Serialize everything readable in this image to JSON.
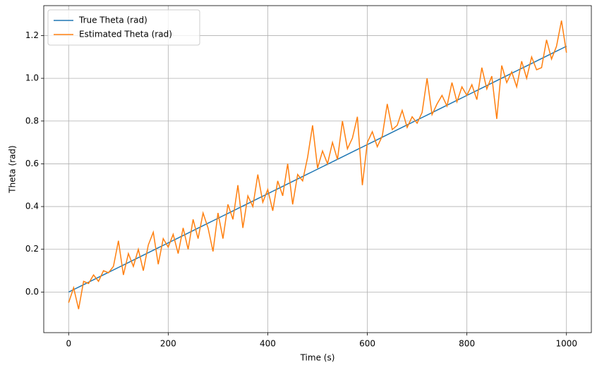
{
  "chart_data": {
    "type": "line",
    "xlabel": "Time (s)",
    "ylabel": "Theta (rad)",
    "x": [
      0,
      10,
      20,
      30,
      40,
      50,
      60,
      70,
      80,
      90,
      100,
      110,
      120,
      130,
      140,
      150,
      160,
      170,
      180,
      190,
      200,
      210,
      220,
      230,
      240,
      250,
      260,
      270,
      280,
      290,
      300,
      310,
      320,
      330,
      340,
      350,
      360,
      370,
      380,
      390,
      400,
      410,
      420,
      430,
      440,
      450,
      460,
      470,
      480,
      490,
      500,
      510,
      520,
      530,
      540,
      550,
      560,
      570,
      580,
      590,
      600,
      610,
      620,
      630,
      640,
      650,
      660,
      670,
      680,
      690,
      700,
      710,
      720,
      730,
      740,
      750,
      760,
      770,
      780,
      790,
      800,
      810,
      820,
      830,
      840,
      850,
      860,
      870,
      880,
      890,
      900,
      910,
      920,
      930,
      940,
      950,
      960,
      970,
      980,
      990,
      1000
    ],
    "series": [
      {
        "name": "True Theta (rad)",
        "color": "#1f77b4",
        "values": [
          0,
          0.0115,
          0.023,
          0.0345,
          0.046,
          0.0575,
          0.069,
          0.0805,
          0.092,
          0.1035,
          0.115,
          0.1265,
          0.138,
          0.1495,
          0.161,
          0.1725,
          0.184,
          0.1955,
          0.207,
          0.2185,
          0.23,
          0.2415,
          0.253,
          0.2645,
          0.276,
          0.2875,
          0.299,
          0.3105,
          0.322,
          0.3335,
          0.345,
          0.3565,
          0.368,
          0.3795,
          0.391,
          0.4025,
          0.414,
          0.4255,
          0.437,
          0.4485,
          0.46,
          0.4715,
          0.483,
          0.4945,
          0.506,
          0.5175,
          0.529,
          0.5405,
          0.552,
          0.5635,
          0.575,
          0.5865,
          0.598,
          0.6095,
          0.621,
          0.6325,
          0.644,
          0.6555,
          0.667,
          0.6785,
          0.69,
          0.7015,
          0.713,
          0.7245,
          0.736,
          0.7475,
          0.759,
          0.7705,
          0.782,
          0.7935,
          0.805,
          0.8165,
          0.828,
          0.8395,
          0.851,
          0.8625,
          0.874,
          0.8855,
          0.897,
          0.9085,
          0.92,
          0.9315,
          0.943,
          0.9545,
          0.966,
          0.9775,
          0.989,
          1.0005,
          1.012,
          1.0235,
          1.035,
          1.0465,
          1.058,
          1.0695,
          1.081,
          1.0925,
          1.104,
          1.1155,
          1.127,
          1.1385,
          1.15
        ]
      },
      {
        "name": "Estimated Theta (rad)",
        "color": "#ff7f0e",
        "values": [
          -0.05,
          0.02,
          -0.08,
          0.05,
          0.04,
          0.08,
          0.05,
          0.1,
          0.09,
          0.12,
          0.24,
          0.08,
          0.18,
          0.12,
          0.2,
          0.1,
          0.22,
          0.28,
          0.13,
          0.25,
          0.21,
          0.27,
          0.18,
          0.3,
          0.2,
          0.34,
          0.25,
          0.37,
          0.3,
          0.19,
          0.37,
          0.25,
          0.41,
          0.34,
          0.5,
          0.3,
          0.45,
          0.4,
          0.55,
          0.42,
          0.48,
          0.38,
          0.52,
          0.45,
          0.6,
          0.41,
          0.55,
          0.52,
          0.63,
          0.78,
          0.58,
          0.66,
          0.6,
          0.7,
          0.62,
          0.8,
          0.67,
          0.72,
          0.82,
          0.5,
          0.7,
          0.75,
          0.68,
          0.73,
          0.88,
          0.76,
          0.78,
          0.85,
          0.77,
          0.82,
          0.79,
          0.84,
          1.0,
          0.83,
          0.88,
          0.92,
          0.87,
          0.98,
          0.89,
          0.96,
          0.92,
          0.97,
          0.9,
          1.05,
          0.95,
          1.01,
          0.81,
          1.06,
          0.98,
          1.03,
          0.96,
          1.08,
          1.0,
          1.1,
          1.04,
          1.05,
          1.18,
          1.09,
          1.15,
          1.27,
          1.12
        ]
      }
    ],
    "xlim": [
      -50,
      1050
    ],
    "ylim": [
      -0.19,
      1.34
    ],
    "xticks": [
      0,
      200,
      400,
      600,
      800,
      1000
    ],
    "yticks": [
      {
        "value": 0,
        "label": "0.0"
      },
      0.2,
      0.4,
      0.6,
      0.8,
      {
        "value": 1,
        "label": "1.0"
      },
      1.2
    ],
    "grid": true,
    "legend": "upper left"
  }
}
